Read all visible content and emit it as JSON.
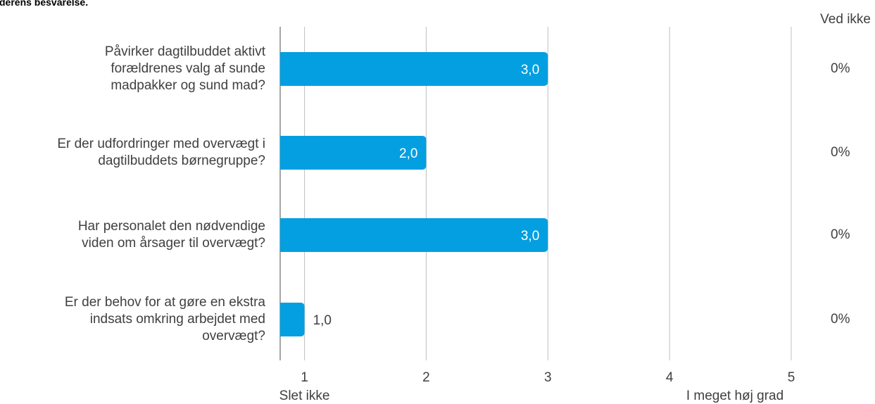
{
  "subtitle": "derens besvarelse.",
  "ved_ikke_header": "Ved ikke",
  "colors": {
    "bar": "#049fe0",
    "grid": "#c0c0c0",
    "axis": "#a6a6a6",
    "text": "#404040"
  },
  "chart_data": {
    "type": "bar",
    "orientation": "horizontal",
    "categories": [
      "Påvirker dagtilbuddet aktivt forældrenes valg af sunde madpakker og sund mad?",
      "Er der udfordringer med overvægt i dagtilbuddets børnegruppe?",
      "Har personalet den nødvendige viden om årsager til overvægt?",
      "Er der behov for at gøre en ekstra indsats omkring arbejdet med overvægt?"
    ],
    "category_lines": [
      [
        "Påvirker dagtilbuddet aktivt",
        "forældrenes valg af sunde",
        "madpakker og sund mad?"
      ],
      [
        "Er der udfordringer med overvægt i",
        "dagtilbuddets børnegruppe?"
      ],
      [
        "Har personalet den nødvendige",
        "viden om årsager til overvægt?"
      ],
      [
        "Er der behov for at gøre en ekstra",
        "indsats omkring arbejdet med",
        "overvægt?"
      ]
    ],
    "values": [
      3.0,
      2.0,
      3.0,
      1.0
    ],
    "value_labels": [
      "3,0",
      "2,0",
      "3,0",
      "1,0"
    ],
    "ved_ikke": [
      "0%",
      "0%",
      "0%",
      "0%"
    ],
    "xlim": [
      0.8,
      5.0
    ],
    "xticks": [
      1,
      2,
      3,
      4,
      5
    ],
    "xtick_labels": [
      "1",
      "2",
      "3",
      "4",
      "5"
    ],
    "x_end_labels": {
      "low": "Slet ikke",
      "high": "I meget høj grad"
    },
    "grid": true
  }
}
